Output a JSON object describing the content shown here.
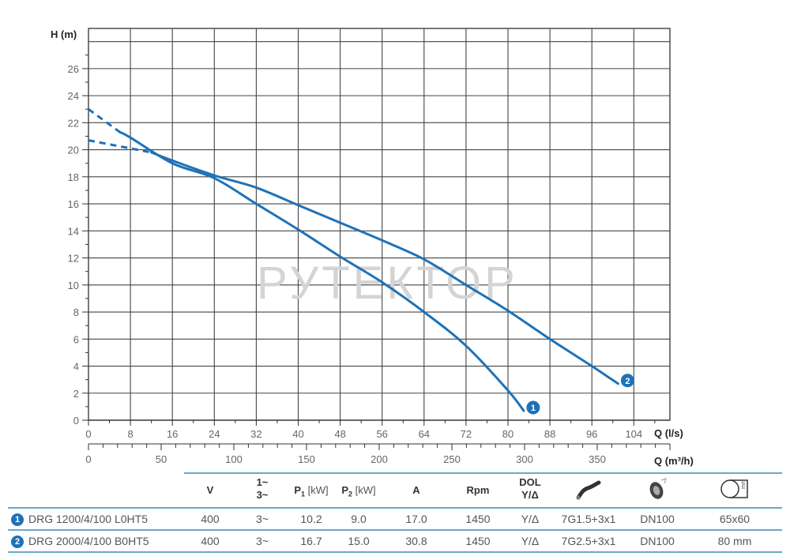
{
  "chart_data": {
    "type": "line",
    "title": "",
    "xlabel": "Q (l/s)",
    "x2label": "Q (m³/h)",
    "ylabel": "H (m)",
    "xlim": [
      0,
      112
    ],
    "ylim": [
      0,
      28
    ],
    "x_ticks": [
      0,
      8,
      16,
      24,
      32,
      40,
      48,
      56,
      64,
      72,
      80,
      88,
      96,
      104
    ],
    "x2_ticks": [
      0,
      50,
      100,
      150,
      200,
      250,
      300,
      350
    ],
    "y_ticks": [
      0,
      2,
      4,
      6,
      8,
      10,
      12,
      14,
      16,
      18,
      20,
      22,
      24,
      26
    ],
    "grid": true,
    "watermark": "РУТЕКТОР",
    "series": [
      {
        "name": "1",
        "label": "DRG 1200/4/100 L0HT5",
        "color": "#1d72b8",
        "dashed_segment": {
          "x": [
            0,
            6
          ],
          "y": [
            23.0,
            21.3
          ]
        },
        "x": [
          6,
          8,
          16,
          24,
          32,
          40,
          48,
          56,
          64,
          72,
          80,
          83
        ],
        "y": [
          21.3,
          20.9,
          19.0,
          17.9,
          16.0,
          14.1,
          12.1,
          10.2,
          8.0,
          5.5,
          2.2,
          0.7
        ]
      },
      {
        "name": "2",
        "label": "DRG 2000/4/100 B0HT5",
        "color": "#1d72b8",
        "dashed_segment": {
          "x": [
            0,
            12
          ],
          "y": [
            20.7,
            19.8
          ]
        },
        "x": [
          12,
          16,
          24,
          32,
          40,
          48,
          56,
          64,
          72,
          80,
          88,
          96,
          101
        ],
        "y": [
          19.8,
          19.2,
          18.1,
          17.2,
          15.9,
          14.6,
          13.3,
          11.9,
          10.0,
          8.1,
          6.0,
          4.0,
          2.7
        ]
      }
    ]
  },
  "table": {
    "headers": {
      "v": "V",
      "phase_top": "1~",
      "phase_bottom": "3~",
      "p1": "P",
      "p1_sub": "1",
      "p1_unit": "[kW]",
      "p2": "P",
      "p2_sub": "2",
      "p2_unit": "[kW]",
      "a": "A",
      "rpm": "Rpm",
      "start_top": "DOL",
      "start_bottom": "Y/Δ",
      "cable_icon": "cable-icon",
      "outlet_icon": "flange-outlet-icon",
      "solids_icon": "solids-passage-icon",
      "solids_icon_text": "mm"
    },
    "rows": [
      {
        "badge": "1",
        "model": "DRG 1200/4/100 L0HT5",
        "v": "400",
        "phase": "3~",
        "p1": "10.2",
        "p2": "9.0",
        "a": "17.0",
        "rpm": "1450",
        "start": "Y/Δ",
        "cable": "7G1.5+3x1",
        "outlet": "DN100",
        "solids": "65x60"
      },
      {
        "badge": "2",
        "model": "DRG 2000/4/100 B0HT5",
        "v": "400",
        "phase": "3~",
        "p1": "16.7",
        "p2": "15.0",
        "a": "30.8",
        "rpm": "1450",
        "start": "Y/Δ",
        "cable": "7G2.5+3x1",
        "outlet": "DN100",
        "solids": "80 mm"
      }
    ]
  }
}
